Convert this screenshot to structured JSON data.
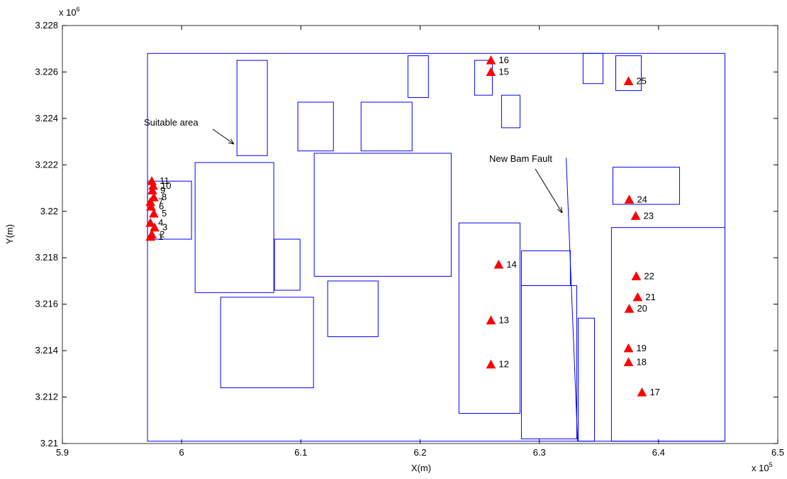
{
  "chart_data": {
    "type": "scatter",
    "x_label": "X(m)",
    "y_label": "Y(m)",
    "x_exponent": {
      "base": "x 10",
      "power": "5"
    },
    "y_exponent": {
      "base": "x 10",
      "power": "6"
    },
    "xlim": [
      5.9,
      6.5
    ],
    "xticks": [
      5.9,
      6,
      6.1,
      6.2,
      6.3,
      6.4,
      6.5
    ],
    "ylim": [
      3.21,
      3.228
    ],
    "yticks": [
      3.21,
      3.212,
      3.214,
      3.216,
      3.218,
      3.22,
      3.222,
      3.224,
      3.226,
      3.228
    ],
    "series": [
      {
        "color": "#ff0000",
        "labels": [
          "1",
          "2",
          "3",
          "4",
          "5",
          "6",
          "7",
          "8",
          "9",
          "10",
          "11",
          "12",
          "13",
          "14",
          "15",
          "16",
          "17",
          "18",
          "19",
          "20",
          "21",
          "22",
          "23",
          "24",
          "25"
        ],
        "x": [
          5.9738,
          5.975,
          5.9773,
          5.9738,
          5.9767,
          5.9743,
          5.9738,
          5.9767,
          5.9755,
          5.9761,
          5.975,
          6.2594,
          6.2594,
          6.2659,
          6.2594,
          6.2594,
          6.3861,
          6.3748,
          6.3748,
          6.3754,
          6.3825,
          6.3813,
          6.3808,
          6.3754,
          6.3748
        ],
        "values": [
          3.2189,
          3.219,
          3.2193,
          3.2195,
          3.2199,
          3.2202,
          3.2204,
          3.2206,
          3.2209,
          3.2211,
          3.2213,
          3.2134,
          3.2153,
          3.2177,
          3.226,
          3.2265,
          3.2122,
          3.2135,
          3.2141,
          3.2158,
          3.2163,
          3.2172,
          3.2198,
          3.2205,
          3.2256
        ]
      }
    ],
    "rect_color": "#0000ff",
    "rects": [
      {
        "x0": 5.9714,
        "x1": 6.4557,
        "y0": 3.2101,
        "y1": 3.2268
      },
      {
        "x0": 5.9714,
        "x1": 6.0083,
        "y0": 3.2188,
        "y1": 3.2213
      },
      {
        "x0": 6.0113,
        "x1": 6.0773,
        "y0": 3.2165,
        "y1": 3.2221
      },
      {
        "x0": 6.0464,
        "x1": 6.0719,
        "y0": 3.2224,
        "y1": 3.2265
      },
      {
        "x0": 6.0779,
        "x1": 6.0993,
        "y0": 3.2166,
        "y1": 3.2188
      },
      {
        "x0": 6.0327,
        "x1": 6.1106,
        "y0": 3.2124,
        "y1": 3.2163
      },
      {
        "x0": 6.0975,
        "x1": 6.1273,
        "y0": 3.2226,
        "y1": 3.2247
      },
      {
        "x0": 6.1505,
        "x1": 6.1933,
        "y0": 3.2226,
        "y1": 3.2247
      },
      {
        "x0": 6.1112,
        "x1": 6.2261,
        "y0": 3.2172,
        "y1": 3.2225
      },
      {
        "x0": 6.1225,
        "x1": 6.1648,
        "y0": 3.2146,
        "y1": 3.217
      },
      {
        "x0": 6.1898,
        "x1": 6.207,
        "y0": 3.2249,
        "y1": 3.2267
      },
      {
        "x0": 6.2457,
        "x1": 6.2606,
        "y0": 3.225,
        "y1": 3.2265
      },
      {
        "x0": 6.2683,
        "x1": 6.2838,
        "y0": 3.2236,
        "y1": 3.225
      },
      {
        "x0": 6.2326,
        "x1": 6.2838,
        "y0": 3.2113,
        "y1": 3.2195
      },
      {
        "x0": 6.285,
        "x1": 6.326,
        "y0": 3.2168,
        "y1": 3.2183
      },
      {
        "x0": 6.285,
        "x1": 6.3314,
        "y0": 3.2102,
        "y1": 3.2168
      },
      {
        "x0": 6.3326,
        "x1": 6.3463,
        "y0": 3.2101,
        "y1": 3.2154
      },
      {
        "x0": 6.3367,
        "x1": 6.3534,
        "y0": 3.2255,
        "y1": 3.2268
      },
      {
        "x0": 6.3641,
        "x1": 6.3855,
        "y0": 3.2252,
        "y1": 3.2267
      },
      {
        "x0": 6.3617,
        "x1": 6.4176,
        "y0": 3.2203,
        "y1": 3.2219
      },
      {
        "x0": 6.3605,
        "x1": 6.4557,
        "y0": 3.2101,
        "y1": 3.2193
      }
    ],
    "fault": {
      "x": [
        6.3225,
        6.3321
      ],
      "y": [
        3.2223,
        3.2101
      ]
    },
    "annotations": [
      "Suitable area",
      "New Bam Fault"
    ]
  }
}
